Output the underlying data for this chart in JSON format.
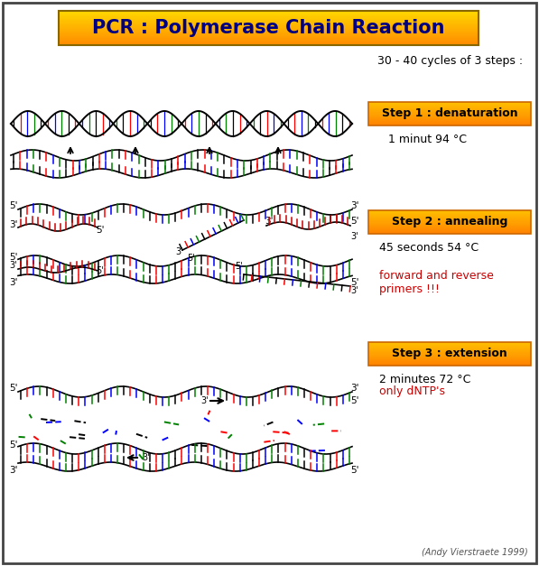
{
  "title": "PCR : Polymerase Chain Reaction",
  "title_bg_top": "#FFD700",
  "title_bg_bot": "#FFA500",
  "title_color": "#000080",
  "subtitle": "30 - 40 cycles of 3 steps :",
  "bg_color": "#FFFFFF",
  "border_color": "#444444",
  "step1_label": "Step 1 : denaturation",
  "step1_sub": "1 minut 94 °C",
  "step2_label": "Step 2 : annealing",
  "step2_sub": "45 seconds 54 °C",
  "step2_sub2": "forward and reverse\nprimers !!!",
  "step3_label": "Step 3 : extension",
  "step3_sub": "2 minutes 72 °C",
  "step3_sub2": "only dNTP's",
  "red_text_color": "#CC0000",
  "footer": "(Andy Vierstraete 1999)",
  "dna_colors": [
    "#000000",
    "#FF0000",
    "#0000FF",
    "#008000"
  ]
}
